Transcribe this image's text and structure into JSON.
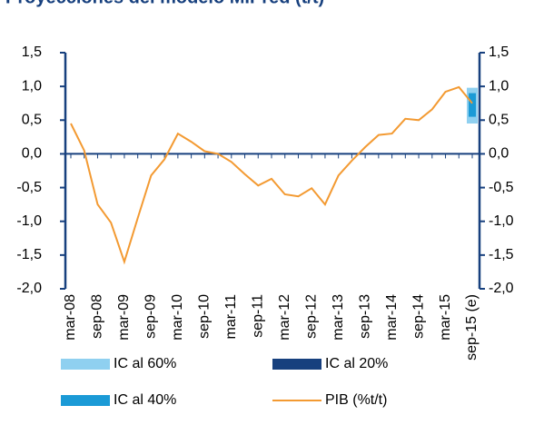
{
  "chart_data": {
    "type": "line",
    "title": "Proyecciones del modelo MIPred (t/t)",
    "categories": [
      "mar-08",
      null,
      "sep-08",
      null,
      "mar-09",
      null,
      "sep-09",
      null,
      "mar-10",
      null,
      "sep-10",
      null,
      "mar-11",
      null,
      "sep-11",
      null,
      "mar-12",
      null,
      "sep-12",
      null,
      "mar-13",
      null,
      "sep-13",
      null,
      "mar-14",
      null,
      "sep-14",
      null,
      "mar-15",
      null,
      "sep-15 (e)"
    ],
    "series": [
      {
        "name": "PIB (%t/t)",
        "color": "#f39a32",
        "values": [
          0.45,
          0.05,
          -0.75,
          -1.02,
          -1.6,
          -0.95,
          -0.32,
          -0.08,
          0.3,
          0.18,
          0.04,
          0.0,
          -0.12,
          -0.3,
          -0.47,
          -0.37,
          -0.6,
          -0.63,
          -0.51,
          -0.75,
          -0.32,
          -0.1,
          0.1,
          0.28,
          0.3,
          0.52,
          0.5,
          0.66,
          0.92,
          0.99,
          0.75
        ]
      }
    ],
    "intervals": [
      {
        "name": "IC al 60%",
        "color": "#8fd0f0",
        "low": 0.45,
        "high": 0.98
      },
      {
        "name": "IC al 20%",
        "color": "#17407e",
        "low": 0.62,
        "high": 0.82
      },
      {
        "name": "IC al 40%",
        "color": "#1b9ad6",
        "low": 0.55,
        "high": 0.9
      }
    ],
    "ylim": [
      -2.0,
      1.5
    ],
    "yticks": [
      {
        "value": 1.5,
        "label": "1,5"
      },
      {
        "value": 1.0,
        "label": "1,0"
      },
      {
        "value": 0.5,
        "label": "0,5"
      },
      {
        "value": 0.0,
        "label": "0,0"
      },
      {
        "value": -0.5,
        "label": "-0,5"
      },
      {
        "value": -1.0,
        "label": "-1,0"
      },
      {
        "value": -1.5,
        "label": "-1,5"
      },
      {
        "value": -2.0,
        "label": "-2,0"
      }
    ],
    "axis_color": "#17407e"
  }
}
